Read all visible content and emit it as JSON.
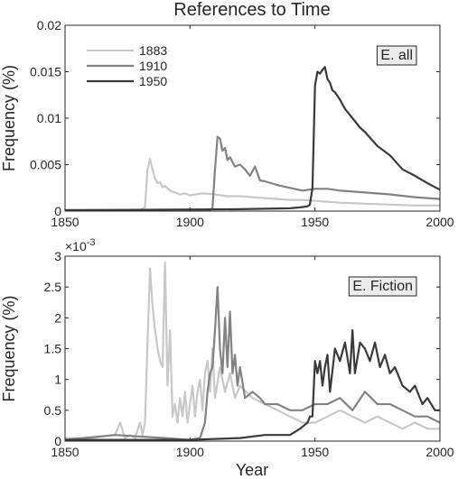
{
  "title": "References to Time",
  "xlabel": "Year",
  "colors": {
    "1883": "#c8c8c8",
    "1910": "#828282",
    "1950": "#3a3a3a",
    "axis": "#262626"
  },
  "chart_data": [
    {
      "type": "line",
      "panel_label": "E. all",
      "ylabel": "Frequency (%)",
      "xlim": [
        1850,
        2000
      ],
      "ylim": [
        0,
        0.02
      ],
      "xticks": [
        1850,
        1900,
        1950,
        2000
      ],
      "xtick_labels": [
        "1850",
        "1900",
        "1950",
        "2000"
      ],
      "yticks": [
        0,
        0.005,
        0.01,
        0.015,
        0.02
      ],
      "ytick_labels": [
        "0",
        "0.005",
        "0.01",
        "0.015",
        "0.02"
      ],
      "exponent_label": "",
      "legend": {
        "placement": "top-left",
        "entries": [
          "1883",
          "1910",
          "1950"
        ]
      },
      "series": [
        {
          "name": "1883",
          "x": [
            1850,
            1870,
            1880,
            1882,
            1883,
            1884,
            1885,
            1886,
            1887,
            1888,
            1889,
            1890,
            1892,
            1894,
            1896,
            1898,
            1900,
            1905,
            1910,
            1915,
            1920,
            1925,
            1930,
            1935,
            1940,
            1945,
            1950,
            1955,
            1960,
            1970,
            1980,
            1990,
            2000
          ],
          "y": [
            0.0001,
            0.0001,
            0.0001,
            0.0004,
            0.0045,
            0.0056,
            0.0045,
            0.0035,
            0.003,
            0.0031,
            0.0026,
            0.0027,
            0.0022,
            0.002,
            0.0018,
            0.0019,
            0.0017,
            0.0019,
            0.0018,
            0.0016,
            0.0016,
            0.0015,
            0.0014,
            0.0013,
            0.0012,
            0.0012,
            0.0011,
            0.001,
            0.0009,
            0.0008,
            0.0007,
            0.0006,
            0.0006
          ]
        },
        {
          "name": "1910",
          "x": [
            1850,
            1900,
            1908,
            1909,
            1910,
            1911,
            1912,
            1913,
            1914,
            1915,
            1916,
            1918,
            1920,
            1922,
            1924,
            1926,
            1928,
            1930,
            1935,
            1940,
            1945,
            1950,
            1955,
            1960,
            1970,
            1980,
            1990,
            2000
          ],
          "y": [
            0.0001,
            0.0001,
            0.0001,
            0.0003,
            0.0045,
            0.008,
            0.0078,
            0.0065,
            0.0068,
            0.0055,
            0.0058,
            0.0048,
            0.005,
            0.0045,
            0.0038,
            0.0048,
            0.0033,
            0.0032,
            0.0028,
            0.0025,
            0.0022,
            0.0024,
            0.0024,
            0.0022,
            0.002,
            0.0018,
            0.0015,
            0.0013
          ]
        },
        {
          "name": "1950",
          "x": [
            1850,
            1920,
            1940,
            1944,
            1947,
            1948,
            1949,
            1950,
            1951,
            1952,
            1953,
            1954,
            1955,
            1956,
            1957,
            1958,
            1960,
            1962,
            1965,
            1968,
            1970,
            1975,
            1980,
            1985,
            1990,
            1995,
            2000
          ],
          "y": [
            0.0001,
            0.0002,
            0.0003,
            0.0004,
            0.0005,
            0.0007,
            0.0025,
            0.0135,
            0.015,
            0.0148,
            0.0152,
            0.0155,
            0.0142,
            0.0138,
            0.013,
            0.0128,
            0.012,
            0.011,
            0.01,
            0.009,
            0.0085,
            0.007,
            0.006,
            0.0045,
            0.0038,
            0.003,
            0.0023
          ]
        }
      ]
    },
    {
      "type": "line",
      "panel_label": "E. Fiction",
      "ylabel": "Frequency (%)",
      "xlim": [
        1850,
        2000
      ],
      "ylim": [
        0,
        0.003
      ],
      "xticks": [
        1850,
        1900,
        1950,
        2000
      ],
      "xtick_labels": [
        "1850",
        "1900",
        "1950",
        "2000"
      ],
      "yticks": [
        0,
        0.0005,
        0.001,
        0.0015,
        0.002,
        0.0025,
        0.003
      ],
      "ytick_labels": [
        "0",
        "0.5",
        "1",
        "1.5",
        "2",
        "2.5",
        "3"
      ],
      "exponent_label": "×10^-3",
      "series": [
        {
          "name": "1883",
          "x": [
            1850,
            1860,
            1870,
            1872,
            1874,
            1876,
            1878,
            1880,
            1881,
            1882,
            1883,
            1884,
            1885,
            1886,
            1887,
            1888,
            1889,
            1890,
            1891,
            1892,
            1893,
            1894,
            1895,
            1896,
            1897,
            1898,
            1899,
            1900,
            1901,
            1902,
            1903,
            1904,
            1905,
            1906,
            1907,
            1908,
            1909,
            1910,
            1912,
            1914,
            1916,
            1918,
            1920,
            1925,
            1930,
            1935,
            1940,
            1945,
            1950,
            1955,
            1960,
            1965,
            1970,
            1975,
            1980,
            1985,
            1990,
            1995,
            2000
          ],
          "y": [
            5e-05,
            5e-05,
            0.0001,
            0.0003,
            5e-05,
            0.0001,
            5e-05,
            0.0003,
            0.0001,
            0.0003,
            0.0016,
            0.0028,
            0.0022,
            0.0018,
            0.0015,
            0.0013,
            0.0012,
            0.0029,
            0.0009,
            0.0018,
            0.0004,
            0.0006,
            0.0003,
            0.0007,
            0.0004,
            0.0008,
            0.0003,
            0.0006,
            0.0009,
            0.0004,
            0.0008,
            0.001,
            0.0005,
            0.0011,
            0.0013,
            0.0008,
            0.0015,
            0.0007,
            0.0012,
            0.0008,
            0.0011,
            0.0007,
            0.0009,
            0.0007,
            0.0006,
            0.0005,
            0.0004,
            0.0003,
            0.0003,
            0.0004,
            0.0005,
            0.0004,
            0.0003,
            0.0004,
            0.0003,
            0.0002,
            0.0003,
            0.0002,
            0.0002
          ]
        },
        {
          "name": "1910",
          "x": [
            1850,
            1870,
            1890,
            1900,
            1904,
            1906,
            1907,
            1908,
            1909,
            1910,
            1911,
            1912,
            1913,
            1914,
            1915,
            1916,
            1917,
            1918,
            1919,
            1920,
            1922,
            1925,
            1928,
            1930,
            1935,
            1940,
            1945,
            1950,
            1955,
            1960,
            1965,
            1970,
            1975,
            1980,
            1985,
            1990,
            1995,
            2000
          ],
          "y": [
            2e-05,
            0.0001,
            5e-05,
            2e-05,
            5e-05,
            0.0003,
            0.0008,
            0.0011,
            0.0012,
            0.0018,
            0.0025,
            0.0015,
            0.0011,
            0.002,
            0.0012,
            0.0021,
            0.0011,
            0.0014,
            0.0009,
            0.0012,
            0.0007,
            0.0008,
            0.0007,
            0.0006,
            0.0006,
            0.0005,
            0.0005,
            0.0006,
            0.0006,
            0.0007,
            0.0005,
            0.0008,
            0.0006,
            0.0006,
            0.0005,
            0.0004,
            0.0004,
            0.0003
          ]
        },
        {
          "name": "1950",
          "x": [
            1850,
            1900,
            1920,
            1930,
            1940,
            1944,
            1947,
            1948,
            1949,
            1950,
            1951,
            1952,
            1953,
            1954,
            1955,
            1956,
            1958,
            1960,
            1962,
            1964,
            1965,
            1966,
            1968,
            1970,
            1972,
            1974,
            1976,
            1978,
            1980,
            1982,
            1985,
            1988,
            1990,
            1993,
            1995,
            1998,
            2000
          ],
          "y": [
            2e-05,
            2e-05,
            5e-05,
            0.0001,
            0.0001,
            0.0002,
            0.0003,
            0.0004,
            0.0004,
            0.0013,
            0.0011,
            0.0013,
            0.0009,
            0.0012,
            0.0014,
            0.0008,
            0.0015,
            0.0013,
            0.0016,
            0.0011,
            0.0018,
            0.0011,
            0.0016,
            0.0015,
            0.0013,
            0.0016,
            0.0012,
            0.0014,
            0.0011,
            0.0012,
            0.0009,
            0.0008,
            0.0009,
            0.0006,
            0.0007,
            0.0005,
            0.0005
          ]
        }
      ]
    }
  ]
}
